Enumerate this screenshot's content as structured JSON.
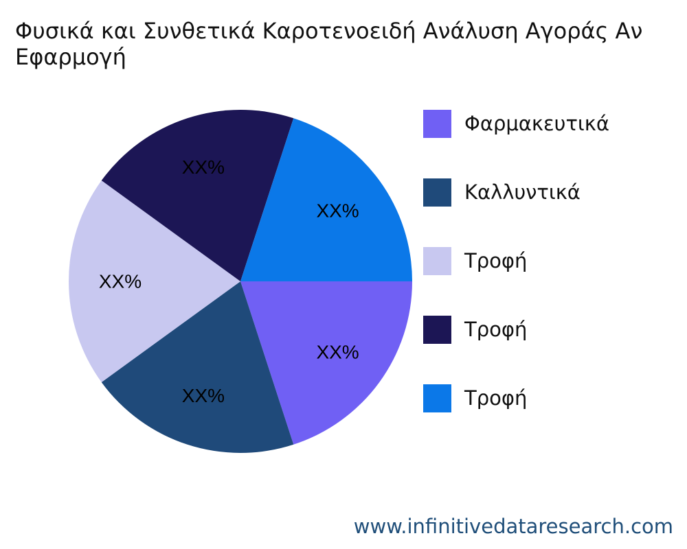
{
  "chart_data": {
    "type": "pie",
    "title_lines": [
      "Φυσικά και Συνθετικά Καροτενοειδή Ανάλυση Αγοράς Αν",
      "Εφαρμογή"
    ],
    "slices": [
      {
        "name": "Φαρμακευτικά",
        "value": 20,
        "label": "XX%",
        "color": "#7060f4"
      },
      {
        "name": "Καλλυντικά",
        "value": 20,
        "label": "XX%",
        "color": "#1f4a7a"
      },
      {
        "name": "Τροφή",
        "value": 20,
        "label": "XX%",
        "color": "#c8c8f0"
      },
      {
        "name": "Τροφή",
        "value": 20,
        "label": "XX%",
        "color": "#1c1655"
      },
      {
        "name": "Τροφή",
        "value": 20,
        "label": "XX%",
        "color": "#0b78e8"
      }
    ],
    "legend_position": "right"
  },
  "source": "www.infinitivedataresearch.com"
}
